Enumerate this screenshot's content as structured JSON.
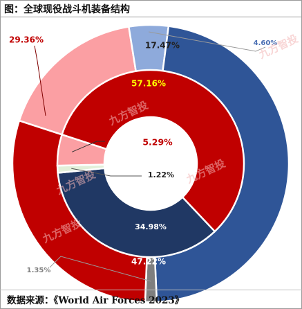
{
  "header": {
    "title": "图：全球现役战斗机装备结构"
  },
  "footer": {
    "source": "数据来源：《World Air Forces 2023》"
  },
  "watermark": "九方智投",
  "chart_data": {
    "type": "donut",
    "title": "图：全球现役战斗机装备结构",
    "outer_ring": [
      {
        "label": "17.47%",
        "value": 17.47,
        "color": "#fb9fa3"
      },
      {
        "label": "4.60%",
        "value": 4.6,
        "color": "#8eaadb"
      },
      {
        "label": "47.22%",
        "value": 47.22,
        "color": "#2f5597"
      },
      {
        "label": "1.35%",
        "value": 1.35,
        "color": "#7f7f7f"
      },
      {
        "label": "29.36%",
        "value": 29.36,
        "color": "#c00000"
      }
    ],
    "inner_ring": [
      {
        "label": "57.16%",
        "value": 57.16,
        "color": "#c00000"
      },
      {
        "label": "34.98%",
        "value": 34.98,
        "color": "#203864"
      },
      {
        "label": "1.22%",
        "value": 1.22,
        "color": "#e2efd9"
      },
      {
        "label": "5.29%",
        "value": 5.29,
        "color": "#fb9fa3"
      }
    ]
  }
}
